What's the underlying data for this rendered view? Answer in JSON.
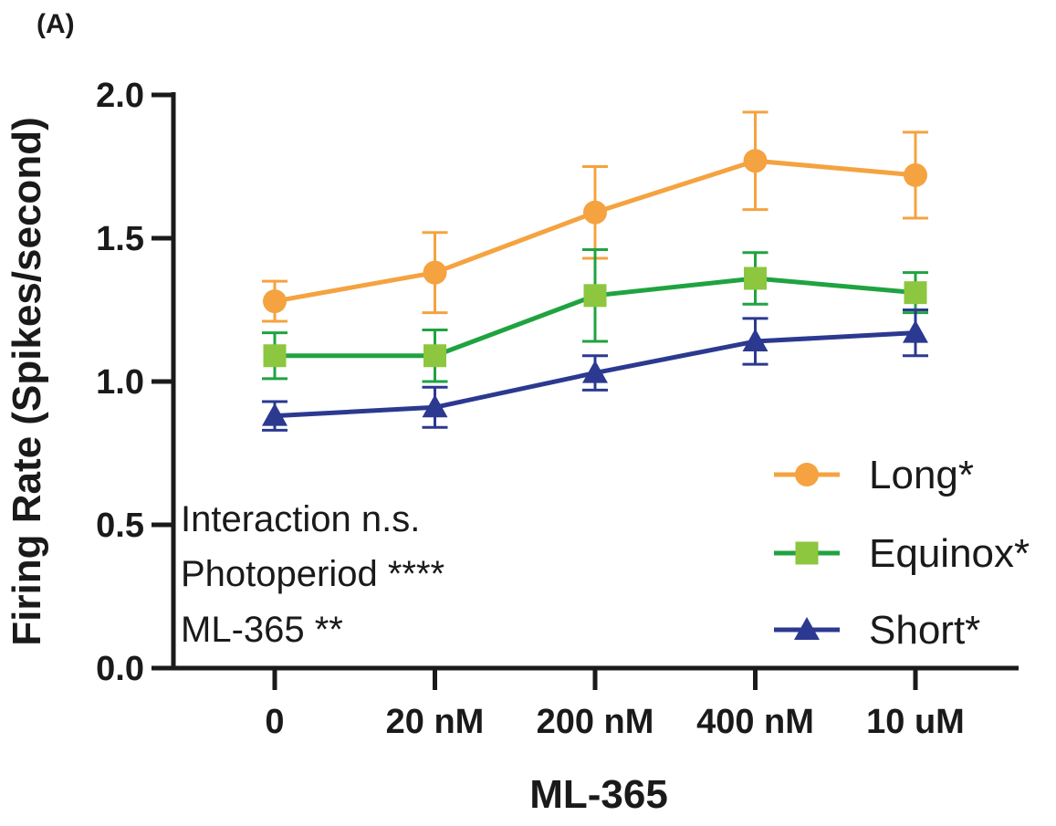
{
  "panel_label": "(A)",
  "chart_data": {
    "type": "line",
    "title": "",
    "xlabel": "ML-365",
    "ylabel": "Firing Rate (Spikes/second)",
    "categories": [
      "0",
      "20 nM",
      "200 nM",
      "400 nM",
      "10 uM"
    ],
    "ylim": [
      0,
      2.0
    ],
    "yticks": [
      "0.0",
      "0.5",
      "1.0",
      "1.5",
      "2.0"
    ],
    "grid": false,
    "legend_position": "bottom-right",
    "series": [
      {
        "name": "Long*",
        "color": "#F4A340",
        "marker": "circle",
        "values": [
          1.28,
          1.38,
          1.59,
          1.77,
          1.72
        ],
        "error": [
          0.07,
          0.14,
          0.16,
          0.17,
          0.15
        ]
      },
      {
        "name": "Equinox*",
        "color": "#1FA340",
        "marker_color": "#8DC63F",
        "marker": "square",
        "values": [
          1.09,
          1.09,
          1.3,
          1.36,
          1.31
        ],
        "error": [
          0.08,
          0.09,
          0.16,
          0.09,
          0.07
        ]
      },
      {
        "name": "Short*",
        "color": "#2B3990",
        "marker": "triangle",
        "values": [
          0.88,
          0.91,
          1.03,
          1.14,
          1.17
        ],
        "error": [
          0.05,
          0.07,
          0.06,
          0.08,
          0.08
        ]
      }
    ],
    "annotations": [
      "Interaction n.s.",
      "Photoperiod ****",
      "ML-365 **"
    ]
  }
}
